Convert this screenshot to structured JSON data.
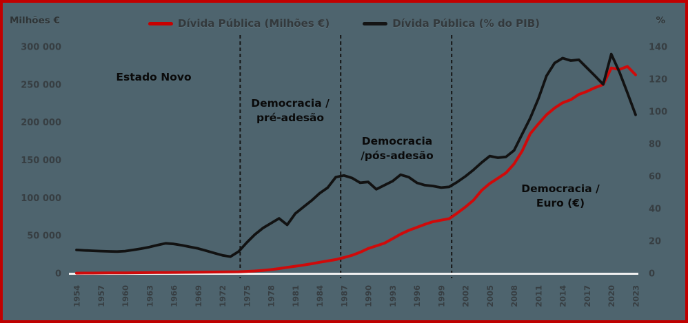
{
  "frame": {
    "background_color": "#4e646e",
    "border_color": "#c00000"
  },
  "header": {
    "left_axis_unit": "Milhões €",
    "right_axis_unit": "%",
    "legend": [
      {
        "label": "Dívida Pública (Milhões €)",
        "color": "#c80000"
      },
      {
        "label": "Dívida Pública (% do PIB)",
        "color": "#141414"
      }
    ]
  },
  "annotations": {
    "era1": "Estado Novo",
    "era2_line1": "Democracia /",
    "era2_line2": "pré-adesão",
    "era3_line1": "Democracia",
    "era3_line2": "/pós-adesão",
    "era4_line1": "Democracia /",
    "era4_line2": "Euro (€)"
  },
  "chart_data": {
    "type": "line",
    "title": "",
    "x_start_year": 1954,
    "x_end_year": 2023,
    "x_tick_labels": [
      "1954",
      "1957",
      "1960",
      "1963",
      "1966",
      "1969",
      "1972",
      "1975",
      "1978",
      "1981",
      "1984",
      "1987",
      "1990",
      "1993",
      "1996",
      "1999",
      "2002",
      "2005",
      "2008",
      "2011",
      "2014",
      "2017",
      "2020",
      "2023"
    ],
    "left_axis": {
      "unit": "Milhões €",
      "tick_labels": [
        "300 000",
        "250 000",
        "200 000",
        "150 000",
        "100 000",
        "50 000",
        "0"
      ],
      "min": 0,
      "max": 300000
    },
    "right_axis": {
      "unit": "%",
      "tick_labels": [
        "140",
        "120",
        "100",
        "80",
        "60",
        "40",
        "20",
        "0"
      ],
      "min": 0,
      "max": 140
    },
    "grid": false,
    "legend_position": "top",
    "era_divider_years": [
      1974.2,
      1986.6,
      2000.3
    ],
    "series": [
      {
        "name": "Dívida Pública (Milhões €)",
        "axis": "left",
        "color": "#cf0a0a",
        "values": [
          400,
          450,
          500,
          550,
          600,
          650,
          700,
          800,
          900,
          1000,
          1100,
          1200,
          1300,
          1400,
          1500,
          1600,
          1700,
          1800,
          1900,
          2000,
          2200,
          2600,
          3200,
          4000,
          5000,
          6400,
          8000,
          9500,
          11000,
          12800,
          14800,
          16500,
          18300,
          21000,
          24000,
          28000,
          33000,
          36500,
          40000,
          46000,
          52000,
          57000,
          61000,
          65000,
          68500,
          70500,
          72500,
          80000,
          88000,
          97000,
          110000,
          119000,
          126000,
          133000,
          145000,
          162000,
          185000,
          198000,
          210000,
          219000,
          226000,
          230000,
          237000,
          241000,
          246000,
          250000,
          272000,
          270000,
          274000,
          263000
        ]
      },
      {
        "name": "Dívida Pública (% do PIB)",
        "axis": "right",
        "color": "#121212",
        "values": [
          14.5,
          14.2,
          14.0,
          13.8,
          13.6,
          13.5,
          13.8,
          14.5,
          15.3,
          16.3,
          17.5,
          18.6,
          18.2,
          17.4,
          16.4,
          15.4,
          14.0,
          12.6,
          11.2,
          10.4,
          13.5,
          19.0,
          24.0,
          28.0,
          31.0,
          34.0,
          30.0,
          37.0,
          41.0,
          45.0,
          49.5,
          53.0,
          59.5,
          60.5,
          59.0,
          56.0,
          56.5,
          52.0,
          54.5,
          57.0,
          61.0,
          59.5,
          56.0,
          54.5,
          54.0,
          53.0,
          53.5,
          56.5,
          60.0,
          64.0,
          68.5,
          72.5,
          71.5,
          72.0,
          76.0,
          86.0,
          96.0,
          108.0,
          122.0,
          130.0,
          133.0,
          131.5,
          132.0,
          127.0,
          122.0,
          116.8,
          135.5,
          124.5,
          111.5,
          98.0
        ]
      }
    ]
  }
}
